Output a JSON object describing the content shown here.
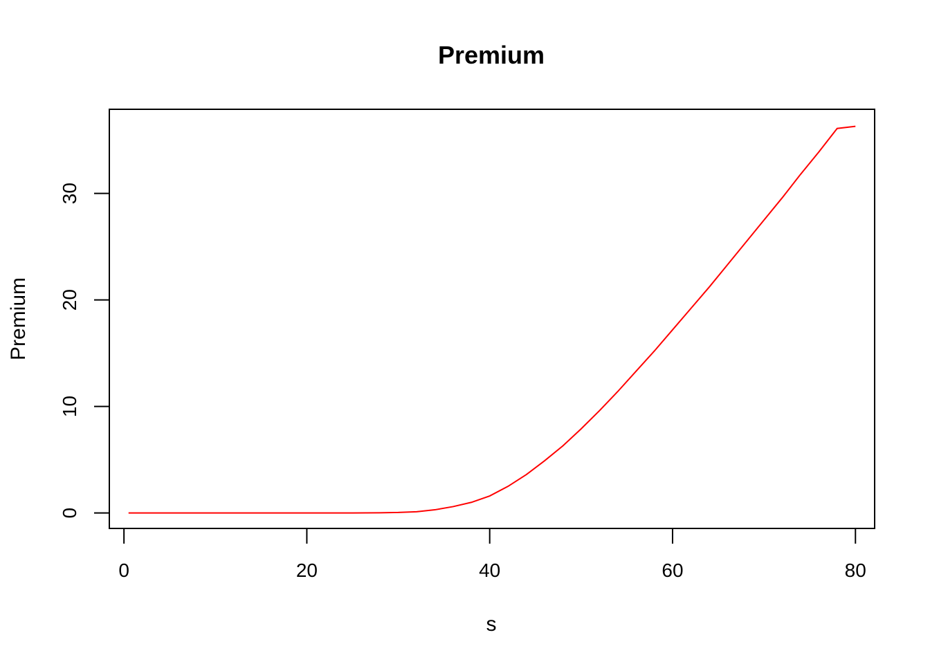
{
  "chart_data": {
    "type": "line",
    "title": "Premium",
    "xlabel": "s",
    "ylabel": "Premium",
    "xlim": [
      -1.6,
      82.1
    ],
    "ylim": [
      -1.45,
      37.9
    ],
    "x_ticks": [
      0,
      20,
      40,
      60,
      80
    ],
    "y_ticks": [
      0,
      10,
      20,
      30
    ],
    "grid": false,
    "line_color": "#ff0000",
    "series": [
      {
        "x": [
          0.5,
          5,
          10,
          15,
          20,
          25,
          28,
          30,
          32,
          34,
          36,
          38,
          40,
          42,
          44,
          46,
          48,
          50,
          52,
          54,
          56,
          58,
          60,
          62,
          64,
          66,
          68,
          70,
          72,
          74,
          76,
          78,
          80
        ],
        "values": [
          0,
          0,
          0,
          0,
          0,
          0,
          0.02,
          0.05,
          0.12,
          0.3,
          0.6,
          1.0,
          1.6,
          2.5,
          3.6,
          4.9,
          6.3,
          7.9,
          9.6,
          11.4,
          13.3,
          15.2,
          17.2,
          19.2,
          21.2,
          23.3,
          25.4,
          27.5,
          29.6,
          31.8,
          33.9,
          36.1,
          36.3
        ]
      }
    ]
  }
}
